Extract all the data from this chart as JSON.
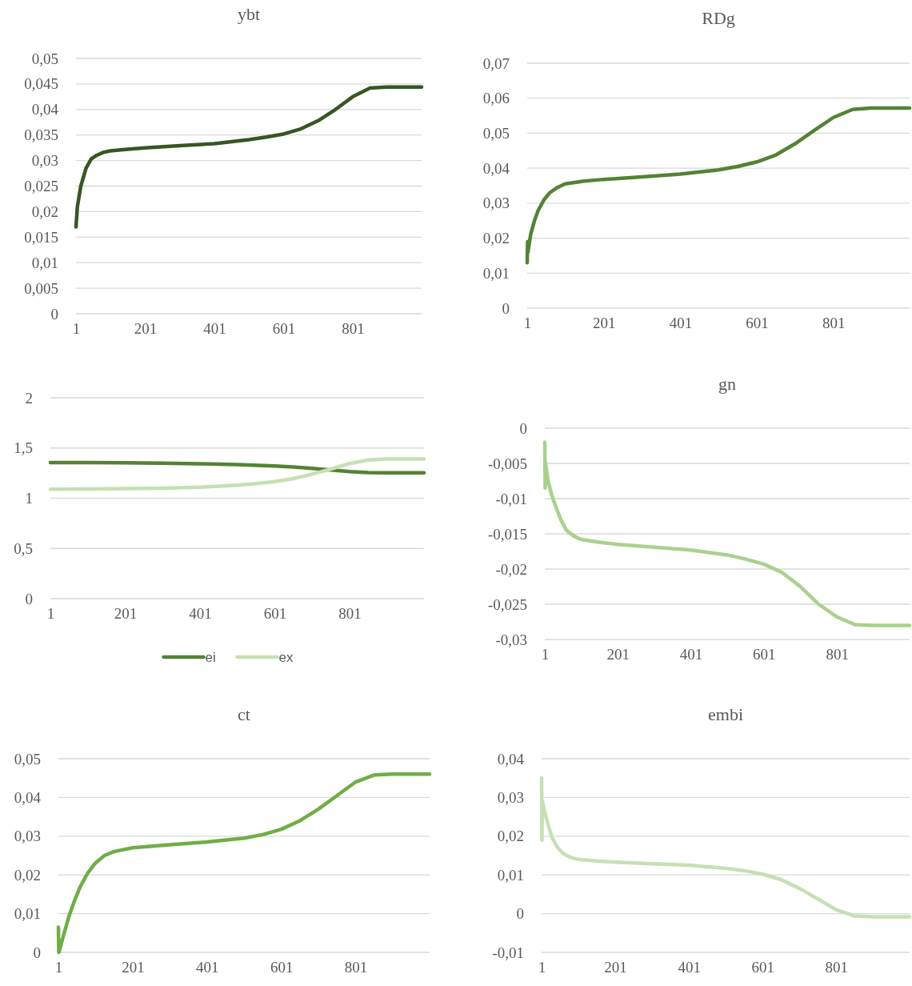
{
  "chart_data": [
    {
      "type": "line",
      "title": "ybt",
      "xlim": [
        1,
        1000
      ],
      "xticks": [
        1,
        201,
        401,
        601,
        801
      ],
      "ylim": [
        0,
        0.05
      ],
      "yticks": [
        {
          "value": 0,
          "label": "0"
        },
        {
          "value": 0.005,
          "label": "0,005"
        },
        {
          "value": 0.01,
          "label": "0,01"
        },
        {
          "value": 0.015,
          "label": "0,015"
        },
        {
          "value": 0.02,
          "label": "0,02"
        },
        {
          "value": 0.025,
          "label": "0,025"
        },
        {
          "value": 0.03,
          "label": "0,03"
        },
        {
          "value": 0.035,
          "label": "0,035"
        },
        {
          "value": 0.04,
          "label": "0,04"
        },
        {
          "value": 0.045,
          "label": "0,045"
        },
        {
          "value": 0.05,
          "label": "0,05"
        }
      ],
      "grid": "y",
      "legend": false,
      "series": [
        {
          "color": "#375623",
          "x": [
            1,
            5,
            15,
            30,
            45,
            60,
            80,
            100,
            150,
            201,
            301,
            401,
            501,
            551,
            601,
            651,
            701,
            751,
            801,
            851,
            900,
            1000
          ],
          "values": [
            0.017,
            0.021,
            0.025,
            0.0285,
            0.0303,
            0.031,
            0.0316,
            0.0319,
            0.0322,
            0.0325,
            0.0329,
            0.0333,
            0.0341,
            0.0346,
            0.0352,
            0.0362,
            0.0378,
            0.04,
            0.0425,
            0.0442,
            0.0444,
            0.0444
          ]
        }
      ]
    },
    {
      "type": "line",
      "title": "RDg",
      "xlim": [
        1,
        1000
      ],
      "xticks": [
        1,
        201,
        401,
        601,
        801
      ],
      "ylim": [
        0,
        0.07
      ],
      "yticks": [
        {
          "value": 0,
          "label": "0"
        },
        {
          "value": 0.01,
          "label": "0,01"
        },
        {
          "value": 0.02,
          "label": "0,02"
        },
        {
          "value": 0.03,
          "label": "0,03"
        },
        {
          "value": 0.04,
          "label": "0,04"
        },
        {
          "value": 0.05,
          "label": "0,05"
        },
        {
          "value": 0.06,
          "label": "0,06"
        },
        {
          "value": 0.07,
          "label": "0,07"
        }
      ],
      "grid": "y",
      "legend": false,
      "series": [
        {
          "color": "#548235",
          "x": [
            1,
            2,
            3,
            10,
            20,
            30,
            45,
            60,
            80,
            100,
            150,
            201,
            301,
            401,
            501,
            551,
            601,
            651,
            701,
            751,
            801,
            851,
            900,
            1000
          ],
          "values": [
            0.013,
            0.019,
            0.016,
            0.021,
            0.025,
            0.028,
            0.031,
            0.033,
            0.0345,
            0.0355,
            0.0363,
            0.0368,
            0.0375,
            0.0383,
            0.0395,
            0.0405,
            0.0418,
            0.0438,
            0.047,
            0.0508,
            0.0545,
            0.0568,
            0.0572,
            0.0572
          ]
        }
      ]
    },
    {
      "type": "line",
      "xlim": [
        1,
        1000
      ],
      "xticks": [
        1,
        201,
        401,
        601,
        801
      ],
      "ylim": [
        0,
        2
      ],
      "yticks": [
        0,
        {
          "value": 0.5,
          "label": "0,5"
        },
        1,
        {
          "value": 1.5,
          "label": "1,5"
        },
        2
      ],
      "grid": "y",
      "legend": "bottom",
      "series": [
        {
          "name": "ei",
          "color": "#548235",
          "x": [
            1,
            101,
            201,
            301,
            401,
            501,
            601,
            651,
            701,
            751,
            801,
            851,
            900,
            1000
          ],
          "values": [
            1.355,
            1.354,
            1.352,
            1.349,
            1.343,
            1.335,
            1.32,
            1.31,
            1.296,
            1.28,
            1.265,
            1.255,
            1.253,
            1.253
          ]
        },
        {
          "name": "ex",
          "color": "#c5e0b4",
          "x": [
            1,
            101,
            201,
            301,
            401,
            501,
            551,
            601,
            651,
            701,
            751,
            801,
            851,
            900,
            1000
          ],
          "values": [
            1.09,
            1.092,
            1.095,
            1.1,
            1.11,
            1.13,
            1.145,
            1.165,
            1.195,
            1.24,
            1.29,
            1.345,
            1.38,
            1.39,
            1.39
          ]
        }
      ]
    },
    {
      "type": "line",
      "title": "gn",
      "xlim": [
        1,
        1000
      ],
      "xticks": [
        1,
        201,
        401,
        601,
        801
      ],
      "ylim": [
        -0.03,
        0
      ],
      "yticks": [
        {
          "value": -0.03,
          "label": "-0,03"
        },
        {
          "value": -0.025,
          "label": "-0,025"
        },
        {
          "value": -0.02,
          "label": "-0,02"
        },
        {
          "value": -0.015,
          "label": "-0,015"
        },
        {
          "value": -0.01,
          "label": "-0,01"
        },
        {
          "value": -0.005,
          "label": "-0,005"
        },
        0
      ],
      "grid": "y",
      "legend": false,
      "series": [
        {
          "color": "#a9d18e",
          "x": [
            1,
            2,
            3,
            10,
            20,
            30,
            45,
            60,
            80,
            100,
            150,
            201,
            301,
            401,
            501,
            551,
            601,
            651,
            701,
            751,
            801,
            851,
            900,
            1000
          ],
          "values": [
            -0.002,
            -0.0085,
            -0.005,
            -0.0075,
            -0.0095,
            -0.011,
            -0.013,
            -0.0145,
            -0.0153,
            -0.0158,
            -0.0162,
            -0.0165,
            -0.0169,
            -0.0173,
            -0.018,
            -0.0186,
            -0.0193,
            -0.0205,
            -0.0225,
            -0.025,
            -0.0268,
            -0.0279,
            -0.028,
            -0.028
          ]
        }
      ]
    },
    {
      "type": "line",
      "title": "ct",
      "xlim": [
        1,
        1000
      ],
      "xticks": [
        1,
        201,
        401,
        601,
        801
      ],
      "ylim": [
        0,
        0.05
      ],
      "yticks": [
        {
          "value": 0,
          "label": "0"
        },
        {
          "value": 0.01,
          "label": "0,01"
        },
        {
          "value": 0.02,
          "label": "0,02"
        },
        {
          "value": 0.03,
          "label": "0,03"
        },
        {
          "value": 0.04,
          "label": "0,04"
        },
        {
          "value": 0.05,
          "label": "0,05"
        }
      ],
      "grid": "y",
      "legend": false,
      "series": [
        {
          "color": "#70ad47",
          "x": [
            1,
            2,
            3,
            15,
            30,
            45,
            60,
            80,
            100,
            125,
            150,
            201,
            301,
            401,
            501,
            551,
            601,
            651,
            701,
            751,
            801,
            851,
            900,
            1000
          ],
          "values": [
            0.0065,
            0.0,
            0.0002,
            0.0045,
            0.0095,
            0.0135,
            0.017,
            0.0205,
            0.023,
            0.025,
            0.026,
            0.027,
            0.0278,
            0.0285,
            0.0295,
            0.0304,
            0.0318,
            0.034,
            0.037,
            0.0405,
            0.044,
            0.0458,
            0.046,
            0.046
          ]
        }
      ]
    },
    {
      "type": "line",
      "title": "embi",
      "xlim": [
        1,
        1000
      ],
      "xticks": [
        1,
        201,
        401,
        601,
        801
      ],
      "ylim": [
        -0.01,
        0.04
      ],
      "yticks": [
        {
          "value": -0.01,
          "label": "-0,01"
        },
        0,
        {
          "value": 0.01,
          "label": "0,01"
        },
        {
          "value": 0.02,
          "label": "0,02"
        },
        {
          "value": 0.03,
          "label": "0,03"
        },
        {
          "value": 0.04,
          "label": "0,04"
        }
      ],
      "grid": "y",
      "legend": false,
      "series": [
        {
          "color": "#c5e0b4",
          "x": [
            1,
            2,
            3,
            10,
            20,
            30,
            45,
            60,
            80,
            100,
            150,
            201,
            301,
            401,
            501,
            551,
            601,
            651,
            701,
            751,
            801,
            851,
            900,
            1000
          ],
          "values": [
            0.035,
            0.019,
            0.029,
            0.026,
            0.0225,
            0.0195,
            0.017,
            0.0155,
            0.0145,
            0.014,
            0.0136,
            0.0133,
            0.0129,
            0.0125,
            0.0117,
            0.0111,
            0.0102,
            0.0088,
            0.0065,
            0.0038,
            0.001,
            -0.0006,
            -0.0008,
            -0.0008
          ]
        }
      ]
    }
  ]
}
